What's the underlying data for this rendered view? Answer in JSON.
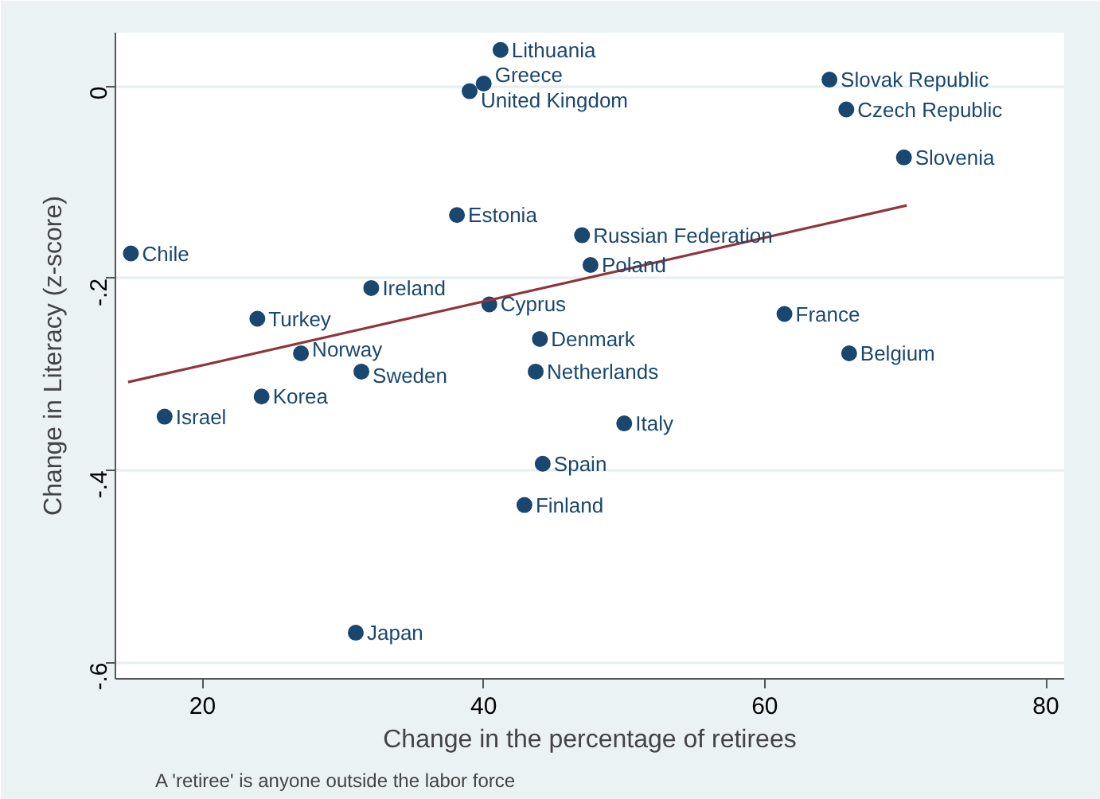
{
  "chart_data": {
    "type": "scatter",
    "xlabel": "Change in the percentage of retirees",
    "ylabel": "Change in Literacy (z-score)",
    "xlim": [
      13.8,
      81.3
    ],
    "ylim": [
      -0.617,
      0.056
    ],
    "xticks": [
      20,
      40,
      60,
      80
    ],
    "yticks": [
      {
        "value": 0,
        "label": "0"
      },
      {
        "value": -0.2,
        "label": "-.2"
      },
      {
        "value": -0.4,
        "label": "-.4"
      },
      {
        "value": -0.6,
        "label": "-.6"
      }
    ],
    "grid": "y",
    "marker": "circle",
    "series": [
      {
        "color": "#1a476f",
        "x": [
          41.2,
          40.0,
          39.0,
          64.6,
          65.8,
          69.9,
          38.1,
          47.0,
          47.6,
          14.9,
          32.0,
          40.4,
          23.9,
          61.4,
          44.0,
          27.0,
          66.0,
          31.3,
          43.7,
          24.2,
          17.3,
          50.0,
          44.2,
          42.9,
          30.9
        ],
        "values": [
          0.038,
          0.003,
          -0.005,
          0.007,
          -0.024,
          -0.074,
          -0.134,
          -0.155,
          -0.186,
          -0.174,
          -0.21,
          -0.227,
          -0.242,
          -0.237,
          -0.263,
          -0.278,
          -0.278,
          -0.297,
          -0.297,
          -0.323,
          -0.344,
          -0.351,
          -0.393,
          -0.436,
          -0.569
        ]
      },
      {
        "type": "line",
        "color": "#90353b",
        "x": [
          14.7,
          70.1
        ],
        "values": [
          -0.308,
          -0.124
        ],
        "marker": "none"
      }
    ],
    "annotations": [
      {
        "text": "Lithuania",
        "x": 41.2,
        "y": 0.038
      },
      {
        "text": "Greece",
        "x": 40.0,
        "y": 0.003
      },
      {
        "text": "United Kingdom",
        "x": 39.0,
        "y": -0.005
      },
      {
        "text": "Slovak Republic",
        "x": 64.6,
        "y": 0.007
      },
      {
        "text": "Czech Republic",
        "x": 65.8,
        "y": -0.024
      },
      {
        "text": "Slovenia",
        "x": 69.9,
        "y": -0.074
      },
      {
        "text": "Estonia",
        "x": 38.1,
        "y": -0.134
      },
      {
        "text": "Russian Federation",
        "x": 47.0,
        "y": -0.155
      },
      {
        "text": "Poland",
        "x": 47.6,
        "y": -0.186
      },
      {
        "text": "Chile",
        "x": 14.9,
        "y": -0.174
      },
      {
        "text": "Ireland",
        "x": 32.0,
        "y": -0.21
      },
      {
        "text": "Cyprus",
        "x": 40.4,
        "y": -0.227
      },
      {
        "text": "Turkey",
        "x": 23.9,
        "y": -0.242
      },
      {
        "text": "France",
        "x": 61.4,
        "y": -0.237
      },
      {
        "text": "Denmark",
        "x": 44.0,
        "y": -0.263
      },
      {
        "text": "Norway",
        "x": 27.0,
        "y": -0.278
      },
      {
        "text": "Belgium",
        "x": 66.0,
        "y": -0.278
      },
      {
        "text": "Sweden",
        "x": 31.3,
        "y": -0.297
      },
      {
        "text": "Netherlands",
        "x": 43.7,
        "y": -0.297
      },
      {
        "text": "Korea",
        "x": 24.2,
        "y": -0.323
      },
      {
        "text": "Israel",
        "x": 17.3,
        "y": -0.344
      },
      {
        "text": "Italy",
        "x": 50.0,
        "y": -0.351
      },
      {
        "text": "Spain",
        "x": 44.2,
        "y": -0.393
      },
      {
        "text": "Finland",
        "x": 42.9,
        "y": -0.436
      },
      {
        "text": "Japan",
        "x": 30.9,
        "y": -0.569
      },
      "A 'retiree' is anyone outside the labor force"
    ]
  }
}
